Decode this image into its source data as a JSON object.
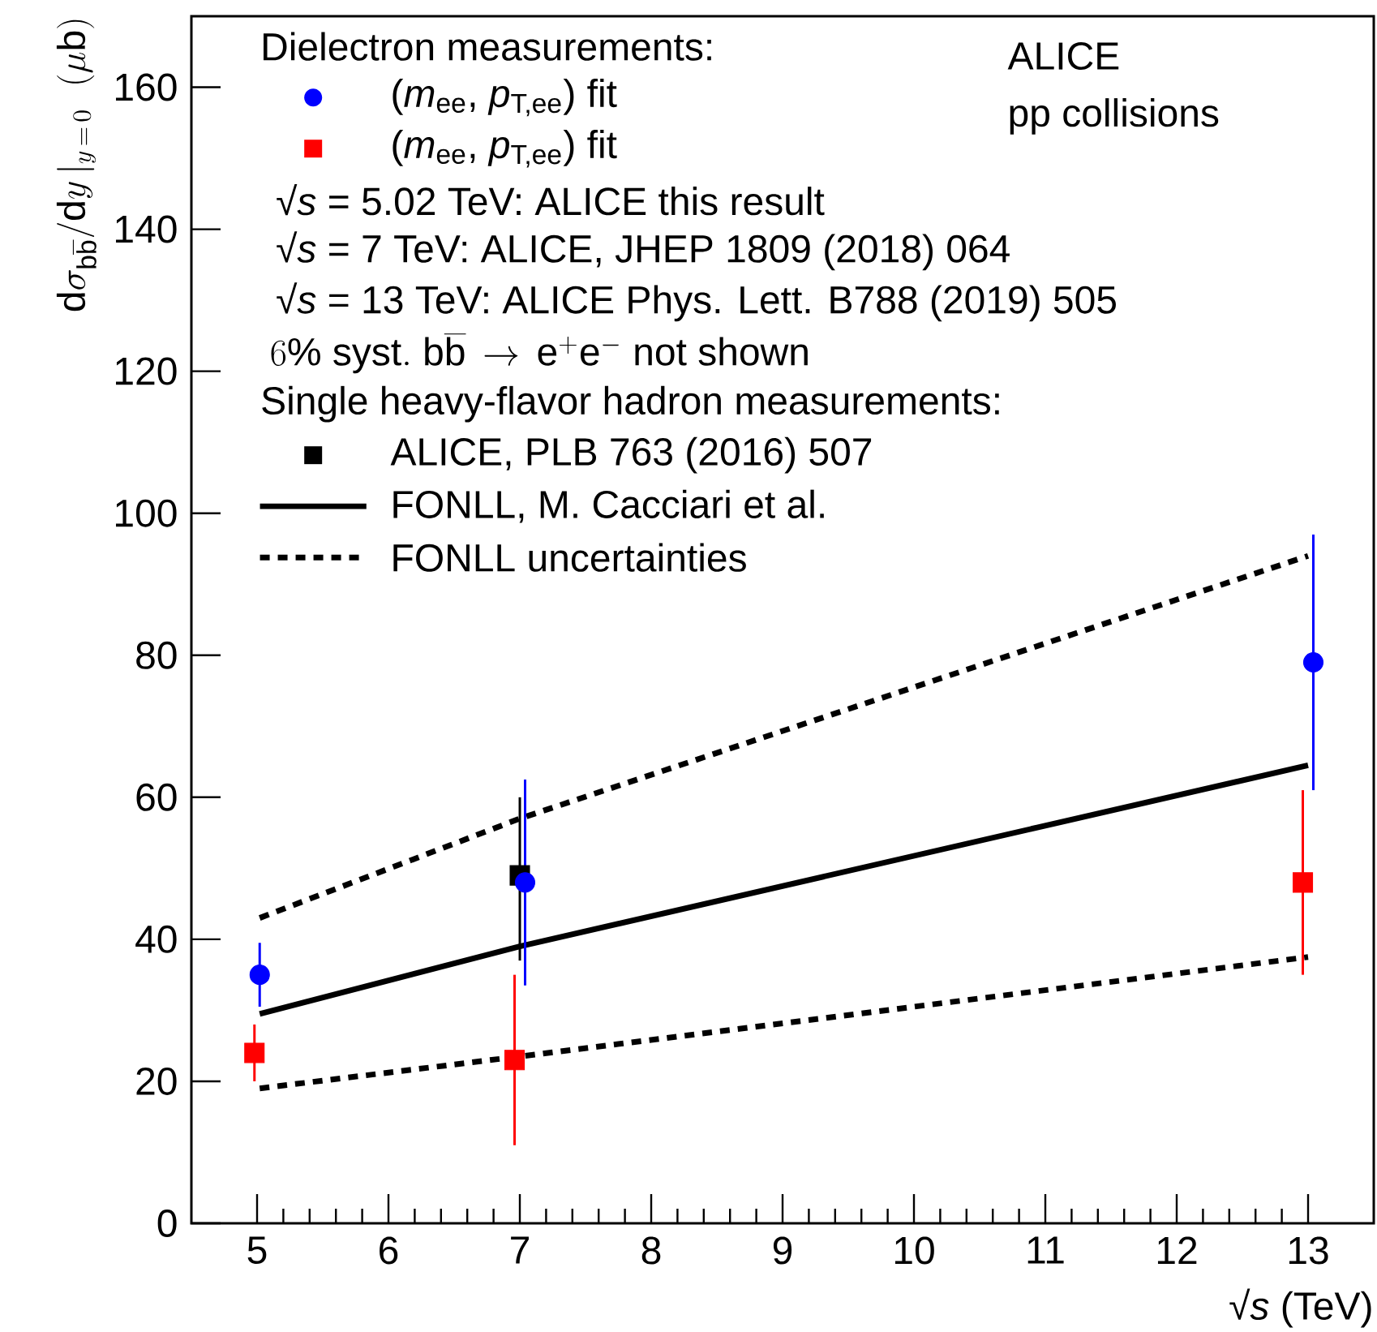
{
  "chart_data": {
    "type": "scatter",
    "xlabel": "√*s* (TeV)",
    "ylabel": "\\mathrm{d}\\sigma_{\\mathrm{b\\overline{b}}}/\\mathrm{d}y\\,|_{y\\,=\\,0}\\ \\ (\\mu\\mathrm{b})",
    "xlim": [
      4.5,
      13.5
    ],
    "ylim": [
      0,
      170
    ],
    "xticks": [
      5,
      6,
      7,
      8,
      9,
      10,
      11,
      12,
      13
    ],
    "yticks": [
      0,
      20,
      40,
      60,
      80,
      100,
      120,
      140,
      160
    ],
    "grid": false,
    "legend": "top left",
    "annotations": [
      "Dielectron measurements:",
      "√*s* = 5.02 TeV: ALICE this result",
      "√*s* = 7 TeV: ALICE, JHEP 1809 (2018) 064",
      "√*s* = 13 TeV: ALICE Phys. Lett. B788 (2019) 505",
      "6\\%\\ \\mathrm{syst.\\ b\\overline{b}}\\,\\rightarrow\\,\\mathrm{e^{+}e^{-}}\\ \\mathrm{not\\ shown}",
      "Single heavy-flavor hadron measurements:",
      "ALICE",
      "pp collisions"
    ],
    "series": [
      {
        "name": "(*m*$_{ee}$, *p*$_{T,ee}$) fit",
        "color": "#0000ff",
        "marker": "circle",
        "x": [
          5.02,
          7.04,
          13.04
        ],
        "values": [
          35,
          48,
          79
        ],
        "errors": [
          [
            30.5,
            39.5
          ],
          [
            33.5,
            62.5
          ],
          [
            61,
            97
          ]
        ]
      },
      {
        "name": "(*m*$_{ee}$, *p*$_{T,ee}$) fit",
        "color": "#ff0000",
        "marker": "square",
        "x": [
          4.98,
          6.96,
          12.96
        ],
        "values": [
          24,
          23,
          48
        ],
        "errors": [
          [
            20,
            28
          ],
          [
            11,
            35
          ],
          [
            35,
            61
          ]
        ]
      },
      {
        "name": "ALICE, PLB 763 (2016) 507",
        "color": "#000000",
        "marker": "square",
        "x": [
          7
        ],
        "values": [
          49
        ],
        "errors": [
          [
            37,
            60
          ]
        ]
      },
      {
        "name": "FONLL, M. Cacciari et al.",
        "type": "line",
        "color": "#000000",
        "line_style": "solid",
        "marker": "none",
        "x": [
          5.02,
          7,
          13
        ],
        "values": [
          29.5,
          39,
          64.5
        ]
      },
      {
        "name": "FONLL uncertainties",
        "type": "line",
        "color": "#000000",
        "line_style": "dotted",
        "marker": "none",
        "x": [
          5.02,
          7,
          13
        ],
        "values": [
          43,
          57,
          94
        ]
      },
      {
        "type": "line",
        "color": "#000000",
        "line_style": "dotted",
        "marker": "none",
        "x": [
          5.02,
          7,
          13
        ],
        "values": [
          19,
          23.5,
          37.5
        ]
      }
    ]
  }
}
